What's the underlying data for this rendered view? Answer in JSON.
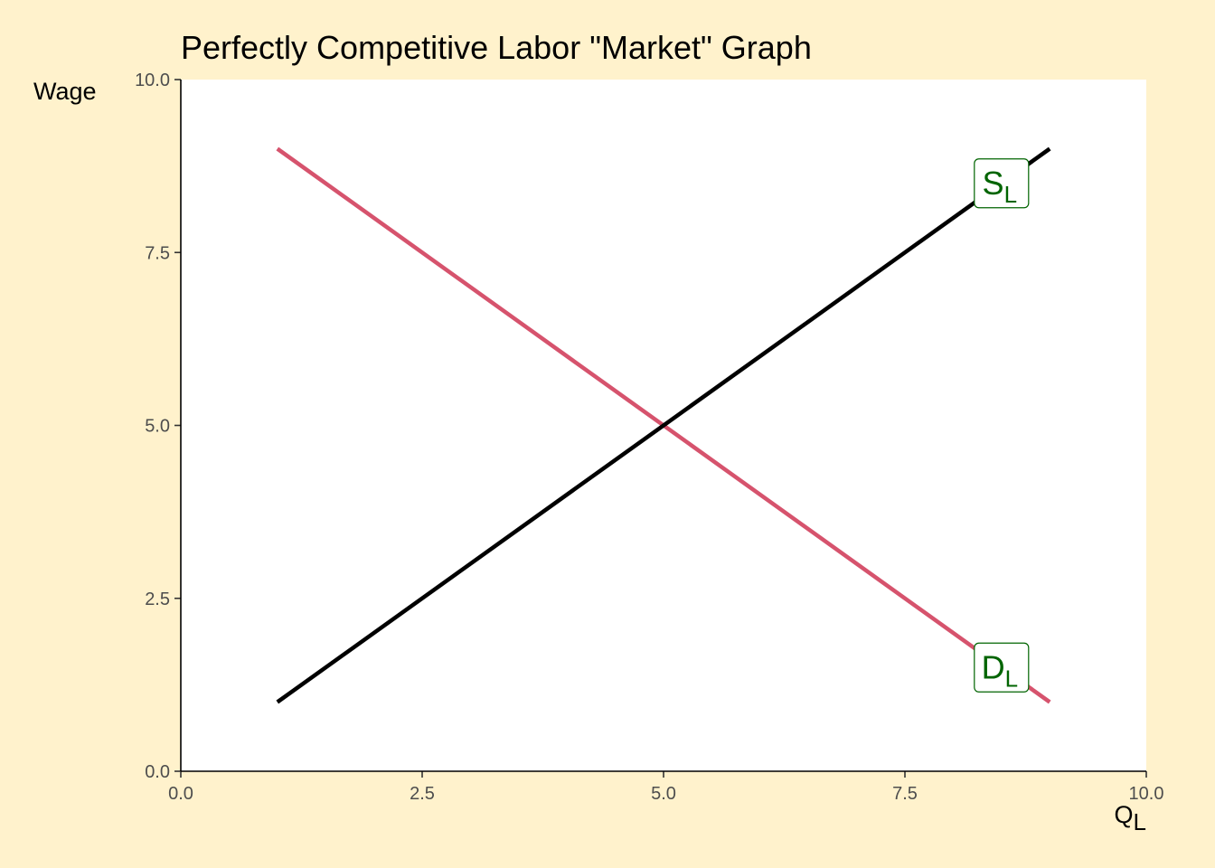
{
  "chart_data": {
    "type": "line",
    "title": "Perfectly Competitive Labor \"Market\" Graph",
    "xlabel": {
      "main": "Q",
      "sub": "L"
    },
    "ylabel": "Wage",
    "xlim": [
      0,
      10
    ],
    "ylim": [
      0,
      10
    ],
    "xticks": [
      0,
      2.5,
      5,
      7.5,
      10
    ],
    "yticks": [
      0,
      2.5,
      5,
      7.5,
      10
    ],
    "xtick_labels": [
      "0.0",
      "2.5",
      "5.0",
      "7.5",
      "10.0"
    ],
    "ytick_labels": [
      "0.0",
      "2.5",
      "5.0",
      "7.5",
      "10.0"
    ],
    "grid": false,
    "series": [
      {
        "key": "demand",
        "label": {
          "main": "D",
          "sub": "L"
        },
        "color": "#D6536D",
        "x": [
          1,
          9
        ],
        "y": [
          9,
          1
        ],
        "label_at": [
          8.5,
          1.5
        ]
      },
      {
        "key": "supply",
        "label": {
          "main": "S",
          "sub": "L"
        },
        "color": "#000000",
        "x": [
          1,
          9
        ],
        "y": [
          1,
          9
        ],
        "label_at": [
          8.5,
          8.5
        ]
      }
    ],
    "colors": {
      "background": "#FFF2CC",
      "panel": "#FFFFFF",
      "label_text": "#006400"
    }
  }
}
